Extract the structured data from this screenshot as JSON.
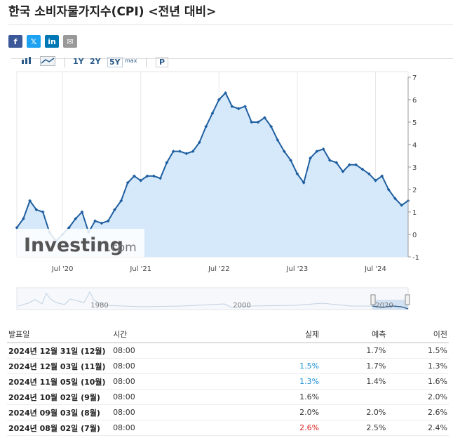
{
  "title": "한국 소비자물가지수(CPI) <전년 대비>",
  "share": [
    {
      "icon": "facebook-icon",
      "glyph": "f",
      "color": "#3b5998"
    },
    {
      "icon": "x-icon",
      "glyph": "𝕏",
      "color": "#1da1f2"
    },
    {
      "icon": "linkedin-icon",
      "glyph": "in",
      "color": "#0077b5"
    },
    {
      "icon": "email-icon",
      "glyph": "✉",
      "color": "#999999"
    }
  ],
  "toolbar": {
    "range_1y": "1Y",
    "range_2y": "2Y",
    "range_5y": "5Y",
    "range_max": "max",
    "p": "P"
  },
  "chart_data": {
    "type": "area",
    "series": [
      {
        "values": [
          0.3,
          0.7,
          1.5,
          1.1,
          1.0,
          0.1,
          -0.3,
          0.0,
          0.3,
          0.7,
          1.0,
          0.1,
          0.6,
          0.5,
          0.6,
          1.1,
          1.5,
          2.3,
          2.6,
          2.4,
          2.6,
          2.6,
          2.5,
          3.2,
          3.7,
          3.7,
          3.6,
          3.7,
          4.1,
          4.8,
          5.4,
          6.0,
          6.3,
          5.7,
          5.6,
          5.7,
          5.0,
          5.0,
          5.2,
          4.8,
          4.2,
          3.7,
          3.3,
          2.7,
          2.3,
          3.4,
          3.7,
          3.8,
          3.3,
          3.2,
          2.8,
          3.1,
          3.1,
          2.9,
          2.7,
          2.4,
          2.6,
          2.0,
          1.6,
          1.3,
          1.5
        ]
      }
    ],
    "x_start": "2019-12",
    "x_end": "2024-12",
    "x_ticks": [
      "Jul '20",
      "Jul '21",
      "Jul '22",
      "Jul '23",
      "Jul '24"
    ],
    "y_ticks": [
      -1,
      0,
      1,
      2,
      3,
      4,
      5,
      6,
      7
    ],
    "ylim": [
      -1,
      7
    ],
    "grid": "vertical",
    "line_color": "#1f5fa0",
    "fill_color": "#d6e9fb",
    "navigator_labels": [
      "1980",
      "2000",
      "2020"
    ]
  },
  "watermark": {
    "brand": "Investing",
    "suffix": ".com"
  },
  "table": {
    "headers": [
      "발표일",
      "시간",
      "실제",
      "예측",
      "이전"
    ],
    "rows": [
      {
        "date": "2024년 12월 31일 (12월)",
        "time": "08:00",
        "actual": "",
        "actual_color": "",
        "forecast": "1.7%",
        "previous": "1.5%"
      },
      {
        "date": "2024년 12월 03일 (11월)",
        "time": "08:00",
        "actual": "1.5%",
        "actual_color": "blue",
        "forecast": "1.7%",
        "previous": "1.3%"
      },
      {
        "date": "2024년 11월 05일 (10월)",
        "time": "08:00",
        "actual": "1.3%",
        "actual_color": "blue",
        "forecast": "1.4%",
        "previous": "1.6%"
      },
      {
        "date": "2024년 10월 02일 (9월)",
        "time": "08:00",
        "actual": "1.6%",
        "actual_color": "",
        "forecast": "",
        "previous": "2.0%"
      },
      {
        "date": "2024년 09월 03일 (8월)",
        "time": "08:00",
        "actual": "2.0%",
        "actual_color": "",
        "forecast": "2.0%",
        "previous": "2.6%"
      },
      {
        "date": "2024년 08월 02일 (7월)",
        "time": "08:00",
        "actual": "2.6%",
        "actual_color": "red",
        "forecast": "2.5%",
        "previous": "2.4%"
      }
    ]
  }
}
